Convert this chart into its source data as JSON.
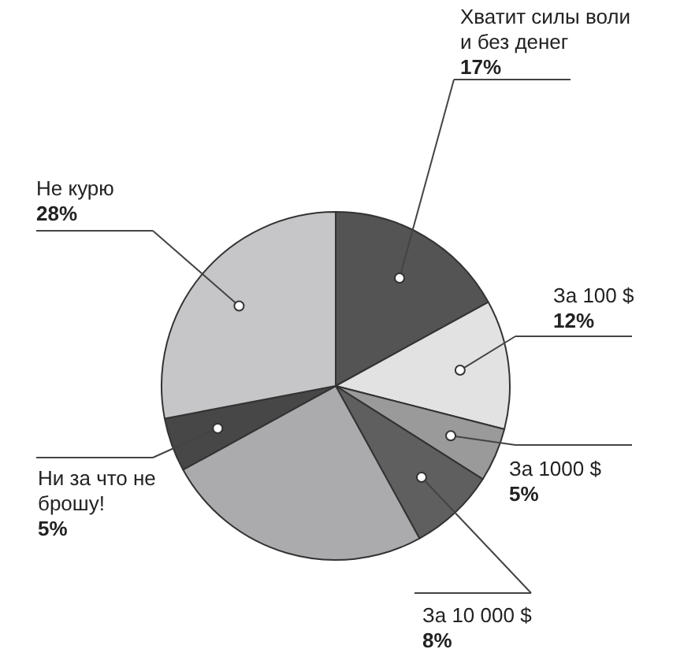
{
  "chart_data": {
    "type": "pie",
    "categories": [
      "Хватит силы воли и без денег",
      "За 100 $",
      "За 1000 $",
      "За 10 000 $",
      null,
      "Ни за что не брошу!",
      "Не курю"
    ],
    "values": [
      17,
      12,
      5,
      8,
      25,
      5,
      28
    ],
    "colors": [
      "#545454",
      "#e2e2e2",
      "#9a9a9a",
      "#5f5f5f",
      "#ababae",
      "#474747",
      "#c6c6c8"
    ],
    "value_labels": [
      "17%",
      "12%",
      "5%",
      "8%",
      null,
      "5%",
      "28%"
    ]
  }
}
